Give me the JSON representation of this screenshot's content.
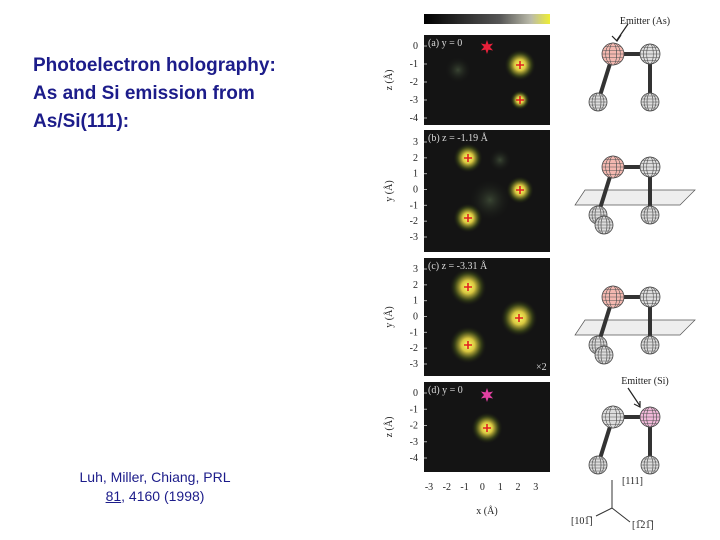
{
  "slide": {
    "title_lines": [
      "Photoelectron holography:",
      "As and Si emission from",
      "As/Si(111):"
    ],
    "citation": {
      "line1": "Luh, Miller, Chiang, PRL",
      "volume": "81",
      "rest": ", 4160 (1998)"
    }
  },
  "figure": {
    "panels": [
      {
        "label": "(a) y = 0",
        "y_axis_label": "z (Å)",
        "y_ticks": [
          "0",
          "-1",
          "-2",
          "-3",
          "-4"
        ]
      },
      {
        "label": "(b) z = -1.19 Å",
        "y_axis_label": "y (Å)",
        "y_ticks": [
          "3",
          "2",
          "1",
          "0",
          "-1",
          "-2",
          "-3"
        ]
      },
      {
        "label": "(c) z = -3.31 Å",
        "y_axis_label": "y (Å)",
        "y_ticks": [
          "3",
          "2",
          "1",
          "0",
          "-1",
          "-2",
          "-3"
        ],
        "note": "×2"
      },
      {
        "label": "(d) y = 0",
        "y_axis_label": "z (Å)",
        "y_ticks": [
          "0",
          "-1",
          "-2",
          "-3",
          "-4"
        ]
      }
    ],
    "x_axis_label": "x (Å)",
    "x_ticks": [
      "-3",
      "-2",
      "-1",
      "0",
      "1",
      "2",
      "3"
    ],
    "emitter_as": "Emitter (As)",
    "emitter_si": "Emitter (Si)",
    "directions": [
      "[111]",
      "[101̅]",
      "[1̅21̅]"
    ]
  }
}
